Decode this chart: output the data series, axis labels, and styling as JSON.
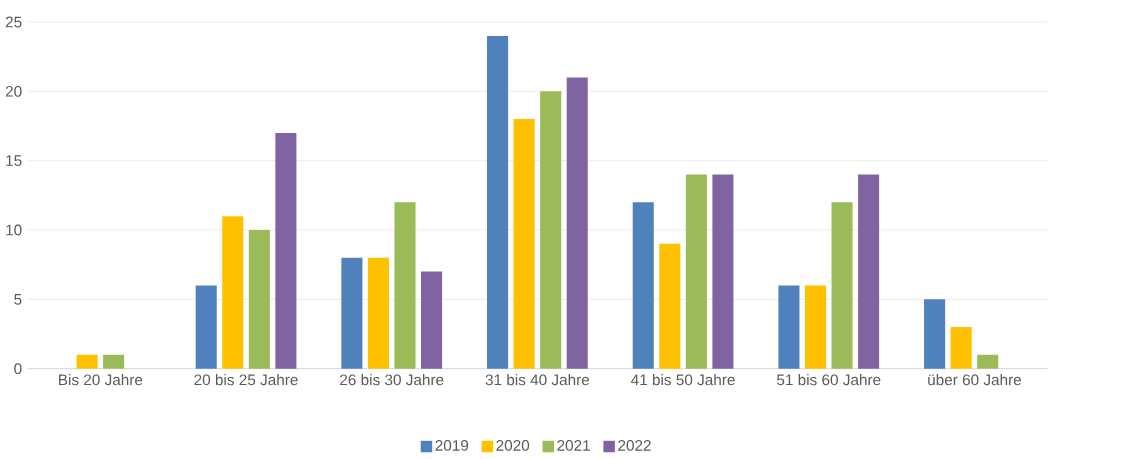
{
  "chart_data": {
    "type": "bar",
    "categories": [
      "Bis 20 Jahre",
      "20 bis 25 Jahre",
      "26 bis 30 Jahre",
      "31 bis 40 Jahre",
      "41 bis 50 Jahre",
      "51 bis 60 Jahre",
      "über 60 Jahre"
    ],
    "series": [
      {
        "name": "2019",
        "color": "#4f81bd",
        "values": [
          null,
          6,
          8,
          24,
          12,
          6,
          5
        ]
      },
      {
        "name": "2020",
        "color": "#ffc000",
        "values": [
          1,
          11,
          8,
          18,
          9,
          6,
          3
        ]
      },
      {
        "name": "2021",
        "color": "#9bbb59",
        "values": [
          1,
          10,
          12,
          20,
          14,
          12,
          1
        ]
      },
      {
        "name": "2022",
        "color": "#8064a2",
        "values": [
          null,
          17,
          7,
          21,
          14,
          14,
          null
        ]
      }
    ],
    "ylim": [
      0,
      25
    ],
    "yticks": [
      0,
      5,
      10,
      15,
      20,
      25
    ],
    "grid": "y",
    "legend": "bottom"
  }
}
